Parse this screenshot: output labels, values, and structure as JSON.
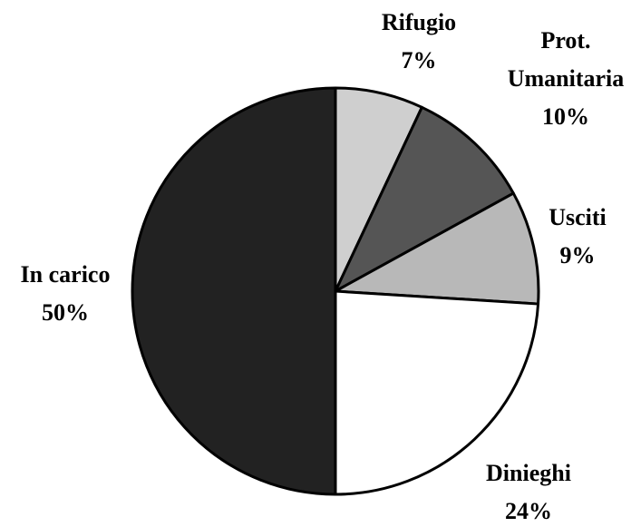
{
  "chart_data": {
    "type": "pie",
    "categories": [
      "Rifugio",
      "Prot. Umanitaria",
      "Usciti",
      "Dinieghi",
      "In carico"
    ],
    "values": [
      7,
      10,
      9,
      24,
      50
    ],
    "value_labels": [
      "7%",
      "10%",
      "9%",
      "24%",
      "50%"
    ],
    "colors": [
      "#cfcfcf",
      "#555555",
      "#b8b8b8",
      "#ffffff",
      "#222222"
    ]
  }
}
